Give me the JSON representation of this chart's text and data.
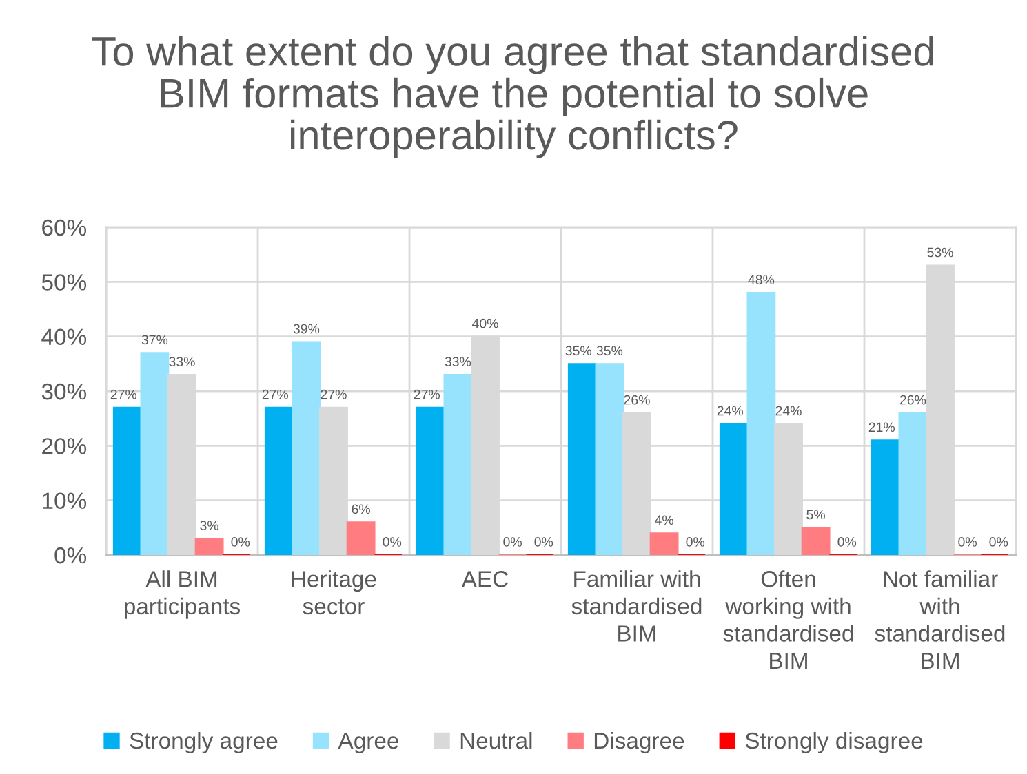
{
  "chart_data": {
    "type": "bar",
    "title": "To what extent do you agree that standardised\nBIM formats have the potential to solve\ninteroperability conflicts?",
    "categories": [
      "All BIM\nparticipants",
      "Heritage\nsector",
      "AEC",
      "Familiar with\nstandardised\nBIM",
      "Often\nworking with\nstandardised\nBIM",
      "Not familiar\nwith\nstandardised\nBIM"
    ],
    "series": [
      {
        "name": "Strongly agree",
        "color": "#00b0f0",
        "values": [
          27,
          27,
          27,
          35,
          24,
          21
        ],
        "value_labels": [
          "27%",
          "27%",
          "27%",
          "35%",
          "24%",
          "21%"
        ]
      },
      {
        "name": "Agree",
        "color": "#97e3fd",
        "values": [
          37,
          39,
          33,
          35,
          48,
          26
        ],
        "value_labels": [
          "37%",
          "39%",
          "33%",
          "35%",
          "48%",
          "26%"
        ]
      },
      {
        "name": "Neutral",
        "color": "#d9d9d9",
        "values": [
          33,
          27,
          40,
          26,
          24,
          53
        ],
        "value_labels": [
          "33%",
          "27%",
          "40%",
          "26%",
          "24%",
          "53%"
        ]
      },
      {
        "name": "Disagree",
        "color": "#ff7c80",
        "values": [
          3,
          6,
          0,
          4,
          5,
          0
        ],
        "value_labels": [
          "3%",
          "6%",
          "0%",
          "4%",
          "5%",
          "0%"
        ]
      },
      {
        "name": "Strongly disagree",
        "color": "#ff0000",
        "values": [
          0,
          0,
          0,
          0,
          0,
          0
        ],
        "value_labels": [
          "0%",
          "0%",
          "0%",
          "0%",
          "0%",
          "0%"
        ]
      }
    ],
    "ylim": [
      0,
      60
    ],
    "yticks": [
      {
        "value": 0,
        "label": "0%"
      },
      {
        "value": 10,
        "label": "10%"
      },
      {
        "value": 20,
        "label": "20%"
      },
      {
        "value": 30,
        "label": "30%"
      },
      {
        "value": 40,
        "label": "40%"
      },
      {
        "value": 50,
        "label": "50%"
      },
      {
        "value": 60,
        "label": "60%"
      }
    ],
    "grid": true,
    "legend": "bottom"
  }
}
